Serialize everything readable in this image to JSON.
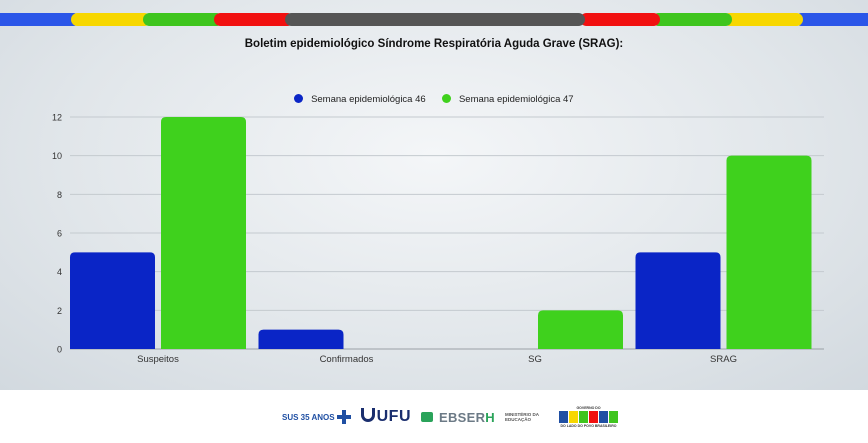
{
  "title": "Boletim epidemiológico Síndrome Respiratória Aguda Grave (SRAG):",
  "colors": {
    "series_46": "#0a25c6",
    "series_47": "#3fd11d",
    "stripe": [
      "#2b56e8",
      "#f7d700",
      "#3fc51e",
      "#f11010",
      "#555555",
      "#f11010",
      "#3fc51e",
      "#f7d700",
      "#2b56e8"
    ]
  },
  "chart_data": {
    "type": "bar",
    "title": "Boletim epidemiológico Síndrome Respiratória Aguda Grave (SRAG):",
    "categories": [
      "Suspeitos",
      "Confirmados",
      "SG",
      "SRAG"
    ],
    "series": [
      {
        "name": "Semana epidemiológica 46",
        "values": [
          5,
          1,
          0,
          5
        ]
      },
      {
        "name": "Semana epidemiológica 47",
        "values": [
          12,
          0,
          2,
          10
        ]
      }
    ],
    "xlabel": "",
    "ylabel": "",
    "ylim": [
      0,
      12
    ],
    "yticks": [
      0,
      2,
      4,
      6,
      8,
      10,
      12
    ],
    "grid": true,
    "legend_position": "top"
  },
  "footer": {
    "logos": [
      {
        "name": "sus-logo",
        "text": "SUS 35 ANOS"
      },
      {
        "name": "ufu-logo",
        "text": "UFU"
      },
      {
        "name": "ebserh-logo",
        "text": "EBSER",
        "accent": "H"
      },
      {
        "name": "mec-logo",
        "text": "MINISTÉRIO DA EDUCAÇÃO"
      },
      {
        "name": "governo-brasil-logo",
        "top": "GOVERNO DO",
        "main": "BRASIL",
        "bottom": "DO LADO DO POVO BRASILEIRO"
      }
    ]
  }
}
